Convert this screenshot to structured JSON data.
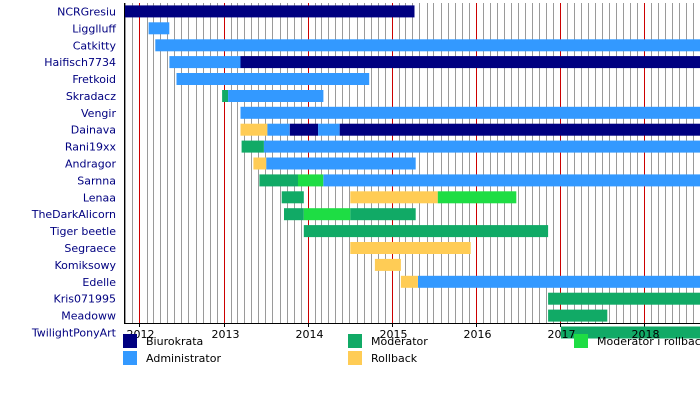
{
  "chart_data": {
    "type": "gantt",
    "x_axis": {
      "range": [
        "2011-10-26",
        "2018-09-01"
      ],
      "ticks": [
        "2012",
        "2013",
        "2014",
        "2015",
        "2016",
        "2017",
        "2018"
      ],
      "grid": "monthly vertical lines, yearly red lines"
    },
    "colors": {
      "Biurokrata": "#000080",
      "Administrator": "#3399ff",
      "Moderator": "#11aa66",
      "Moderator i rollback": "#1edd44",
      "Rollback": "#ffcc55",
      "year_line": "#cc0000",
      "month_line": "#9a9a9a"
    },
    "legend": [
      {
        "name": "Biurokrata",
        "color": "#000080"
      },
      {
        "name": "Administrator",
        "color": "#3399ff"
      },
      {
        "name": "Moderator",
        "color": "#11aa66"
      },
      {
        "name": "Rollback",
        "color": "#ffcc55"
      },
      {
        "name": "Moderator i rollback",
        "color": "#1edd44"
      }
    ],
    "users": [
      {
        "name": "NCRGresiu",
        "periods": [
          {
            "role": "Biurokrata",
            "start": "2011-10-26",
            "end": "2015-04-10"
          }
        ]
      },
      {
        "name": "Ligglluff",
        "periods": [
          {
            "role": "Administrator",
            "start": "2012-02-10",
            "end": "2012-05-10"
          }
        ]
      },
      {
        "name": "Catkitty",
        "periods": [
          {
            "role": "Administrator",
            "start": "2012-03-10",
            "end": "2018-09-01"
          }
        ]
      },
      {
        "name": "Haifisch7734",
        "periods": [
          {
            "role": "Administrator",
            "start": "2012-05-10",
            "end": "2013-03-15"
          },
          {
            "role": "Biurokrata",
            "start": "2013-03-15",
            "end": "2018-09-01"
          }
        ]
      },
      {
        "name": "Fretkoid",
        "periods": [
          {
            "role": "Administrator",
            "start": "2012-06-10",
            "end": "2014-09-25"
          }
        ]
      },
      {
        "name": "Skradacz",
        "periods": [
          {
            "role": "Moderator",
            "start": "2012-12-25",
            "end": "2013-01-20"
          },
          {
            "role": "Administrator",
            "start": "2013-01-20",
            "end": "2014-03-10"
          }
        ]
      },
      {
        "name": "Vengir",
        "periods": [
          {
            "role": "Administrator",
            "start": "2013-03-15",
            "end": "2018-09-01"
          }
        ]
      },
      {
        "name": "Dainava",
        "periods": [
          {
            "role": "Rollback",
            "start": "2013-03-15",
            "end": "2013-07-10"
          },
          {
            "role": "Administrator",
            "start": "2013-07-10",
            "end": "2013-10-15"
          },
          {
            "role": "Biurokrata",
            "start": "2013-10-15",
            "end": "2014-02-15"
          },
          {
            "role": "Administrator",
            "start": "2014-02-15",
            "end": "2014-05-20"
          },
          {
            "role": "Biurokrata",
            "start": "2014-05-20",
            "end": "2018-09-01"
          }
        ]
      },
      {
        "name": "Rani19xx",
        "periods": [
          {
            "role": "Moderator",
            "start": "2013-03-20",
            "end": "2013-06-25"
          },
          {
            "role": "Administrator",
            "start": "2013-06-25",
            "end": "2018-09-01"
          }
        ]
      },
      {
        "name": "Andragor",
        "periods": [
          {
            "role": "Rollback",
            "start": "2013-05-10",
            "end": "2013-07-05"
          },
          {
            "role": "Administrator",
            "start": "2013-07-05",
            "end": "2015-04-15"
          }
        ]
      },
      {
        "name": "Sarnna",
        "periods": [
          {
            "role": "Moderator",
            "start": "2013-06-05",
            "end": "2013-11-20"
          },
          {
            "role": "Moderator i rollback",
            "start": "2013-11-20",
            "end": "2014-03-10"
          },
          {
            "role": "Administrator",
            "start": "2014-03-10",
            "end": "2018-09-01"
          }
        ]
      },
      {
        "name": "Lenaa",
        "periods": [
          {
            "role": "Moderator",
            "start": "2013-09-10",
            "end": "2013-12-15"
          },
          {
            "role": "Rollback",
            "start": "2014-07-05",
            "end": "2015-07-20"
          },
          {
            "role": "Moderator i rollback",
            "start": "2015-07-20",
            "end": "2016-06-25"
          }
        ]
      },
      {
        "name": "TheDarkAlicorn",
        "periods": [
          {
            "role": "Moderator",
            "start": "2013-09-20",
            "end": "2013-12-15"
          },
          {
            "role": "Moderator i rollback",
            "start": "2013-12-15",
            "end": "2014-07-05"
          },
          {
            "role": "Moderator",
            "start": "2014-07-05",
            "end": "2015-04-15"
          }
        ]
      },
      {
        "name": "Tiger beetle",
        "periods": [
          {
            "role": "Moderator",
            "start": "2013-12-15",
            "end": "2016-11-10"
          }
        ]
      },
      {
        "name": "Segraece",
        "periods": [
          {
            "role": "Rollback",
            "start": "2014-07-05",
            "end": "2015-12-10"
          }
        ]
      },
      {
        "name": "Komiksowy",
        "periods": [
          {
            "role": "Rollback",
            "start": "2014-10-20",
            "end": "2015-02-10"
          }
        ]
      },
      {
        "name": "Edelle",
        "periods": [
          {
            "role": "Rollback",
            "start": "2015-02-10",
            "end": "2015-04-25"
          },
          {
            "role": "Administrator",
            "start": "2015-04-25",
            "end": "2018-09-01"
          }
        ]
      },
      {
        "name": "Kris071995",
        "periods": [
          {
            "role": "Moderator",
            "start": "2016-11-10",
            "end": "2018-09-01"
          }
        ]
      },
      {
        "name": "Meadoww",
        "periods": [
          {
            "role": "Moderator",
            "start": "2016-11-10",
            "end": "2017-07-25"
          }
        ]
      },
      {
        "name": "TwilightPonyArt",
        "periods": [
          {
            "role": "Moderator",
            "start": "2017-01-05",
            "end": "2018-09-01"
          }
        ]
      }
    ]
  }
}
